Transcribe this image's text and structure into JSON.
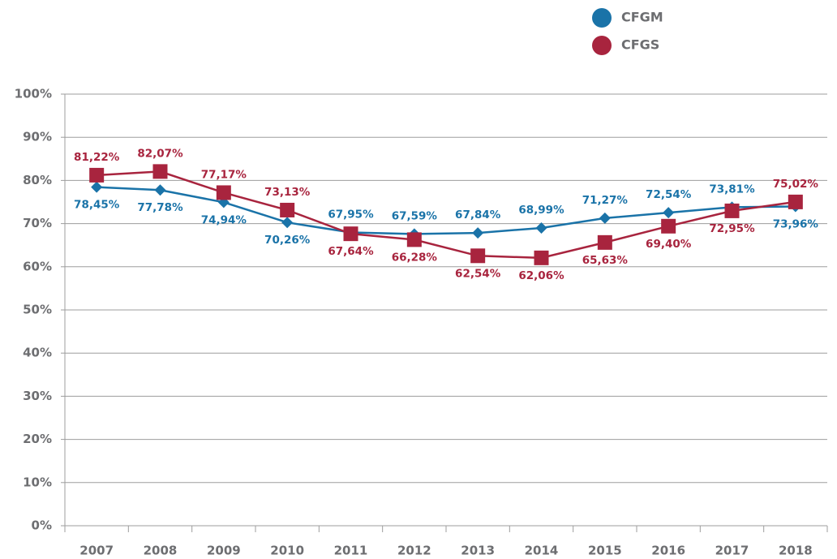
{
  "chart_data": {
    "type": "line",
    "categories": [
      "2007",
      "2008",
      "2009",
      "2010",
      "2011",
      "2012",
      "2013",
      "2014",
      "2015",
      "2016",
      "2017",
      "2018"
    ],
    "series": [
      {
        "name": "CFGM",
        "color": "#1a73a8",
        "marker": "diamond",
        "values": [
          78.45,
          77.78,
          74.94,
          70.26,
          67.95,
          67.59,
          67.84,
          68.99,
          71.27,
          72.54,
          73.81,
          73.96
        ],
        "value_labels": [
          "78,45%",
          "77,78%",
          "74,94%",
          "70,26%",
          "67,95%",
          "67,59%",
          "67,84%",
          "68,99%",
          "71,27%",
          "72,54%",
          "73,81%",
          "73,96%"
        ]
      },
      {
        "name": "CFGS",
        "color": "#a8243e",
        "marker": "square",
        "values": [
          81.22,
          82.07,
          77.17,
          73.13,
          67.64,
          66.28,
          62.54,
          62.06,
          65.63,
          69.4,
          72.95,
          75.02
        ],
        "value_labels": [
          "81,22%",
          "82,07%",
          "77,17%",
          "73,13%",
          "67,64%",
          "66,28%",
          "62,54%",
          "62,06%",
          "65,63%",
          "69,40%",
          "72,95%",
          "75,02%"
        ]
      }
    ],
    "ylim": [
      0,
      100
    ],
    "yticks": [
      {
        "value": 0,
        "label": "0%"
      },
      {
        "value": 10,
        "label": "10%"
      },
      {
        "value": 20,
        "label": "20%"
      },
      {
        "value": 30,
        "label": "30%"
      },
      {
        "value": 40,
        "label": "40%"
      },
      {
        "value": 50,
        "label": "50%"
      },
      {
        "value": 60,
        "label": "60%"
      },
      {
        "value": 70,
        "label": "70%"
      },
      {
        "value": 80,
        "label": "80%"
      },
      {
        "value": 90,
        "label": "90%"
      },
      {
        "value": 100,
        "label": "100%"
      }
    ],
    "grid": true,
    "legend": "top-right"
  }
}
